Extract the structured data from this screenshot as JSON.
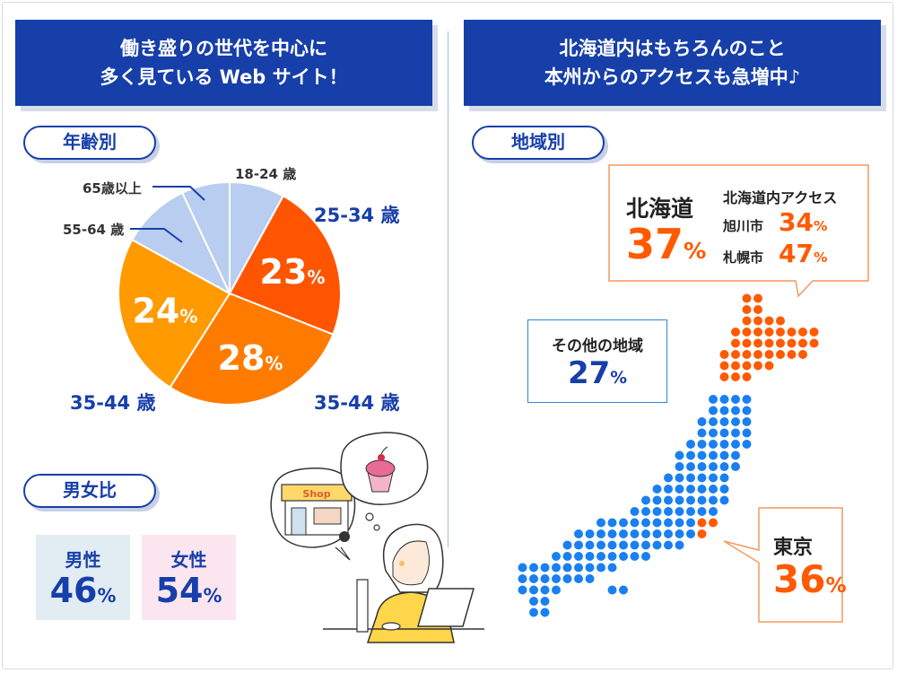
{
  "left_header": {
    "line1": "働き盛りの世代を中心に",
    "line2": "多く見ている Web サイト！"
  },
  "right_header": {
    "line1": "北海道内はもちろんのこと",
    "line2": "本州からのアクセスも急増中♪"
  },
  "age_section": {
    "label": "年齢別"
  },
  "gender_section": {
    "label": "男女比"
  },
  "region_section": {
    "label": "地域別"
  },
  "chart_data": {
    "type": "pie",
    "categories": [
      "18-24 歳",
      "25-34 歳",
      "35-44 歳",
      "35-44 歳",
      "55-64 歳",
      "65歳以上"
    ],
    "values": [
      8,
      23,
      28,
      24,
      10,
      7
    ],
    "value_labels": [
      "",
      "23%",
      "28%",
      "24%",
      "",
      ""
    ],
    "colors": [
      "#b9cdf0",
      "#ff5500",
      "#ff7b00",
      "#ff9a00",
      "#b9cdf0",
      "#b9cdf0"
    ]
  },
  "pie_labels": {
    "l1824": "18-24 歳",
    "l2534": "25-34 歳",
    "l3544r": "35-44 歳",
    "l3544l": "35-44 歳",
    "l5564": "55-64 歳",
    "l65": "65歳以上"
  },
  "gender": {
    "male": {
      "label": "男性",
      "num": "46",
      "unit": "%",
      "color": "#e2ecf3"
    },
    "female": {
      "label": "女性",
      "num": "54",
      "unit": "%",
      "color": "#fbe6ef"
    }
  },
  "hokkaido": {
    "label": "北海道",
    "num": "37",
    "unit": "%",
    "sub_title": "北海道内アクセス",
    "cities": [
      {
        "name": "旭川市",
        "num": "34",
        "unit": "%"
      },
      {
        "name": "札幌市",
        "num": "47",
        "unit": "%"
      }
    ]
  },
  "other": {
    "label": "その他の地域",
    "num": "27",
    "unit": "%"
  },
  "tokyo": {
    "label": "東京",
    "num": "36",
    "unit": "%"
  },
  "illustration": {
    "shop_sign": "Shop"
  },
  "colors": {
    "navy": "#173fa9",
    "orange": "#ff5a00",
    "blue_dot": "#1a7ff0"
  }
}
